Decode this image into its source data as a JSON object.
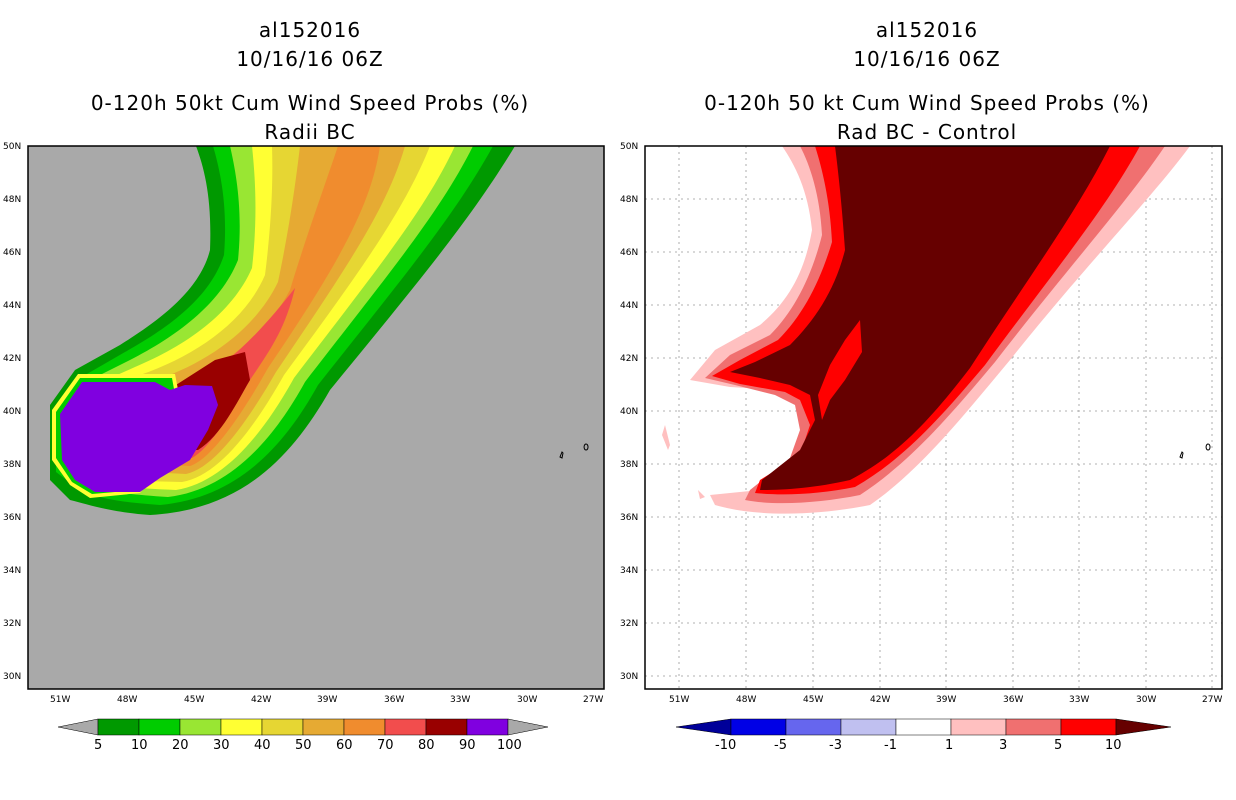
{
  "colors": {
    "land": "#a9a9a9",
    "left_levels": [
      "#009900",
      "#00cc00",
      "#99e633",
      "#ffff33",
      "#e6d633",
      "#e6aa33",
      "#f08c2e",
      "#f24d4d",
      "#990000",
      "#8000e0"
    ],
    "right_levels": [
      "#000099",
      "#0000e6",
      "#6666ee",
      "#c0c0f0",
      "#ffffff",
      "#ffc0c0",
      "#f07070",
      "#ff0000",
      "#660000"
    ]
  },
  "chart_data": [
    {
      "type": "heatmap",
      "storm_id": "al152016",
      "datetime": "10/16/16 06Z",
      "title": "0-120h 50kt Cum Wind Speed Probs (%)",
      "subtitle": "Radii BC",
      "x_ticks": [
        "51W",
        "48W",
        "45W",
        "42W",
        "39W",
        "36W",
        "33W",
        "30W",
        "27W"
      ],
      "y_ticks": [
        "50N",
        "48N",
        "46N",
        "44N",
        "42N",
        "40N",
        "38N",
        "36N",
        "34N",
        "32N",
        "30N"
      ],
      "colorbar_labels": [
        "5",
        "10",
        "20",
        "30",
        "40",
        "50",
        "60",
        "70",
        "80",
        "90",
        "100"
      ]
    },
    {
      "type": "heatmap",
      "storm_id": "al152016",
      "datetime": "10/16/16 06Z",
      "title": "0-120h 50 kt Cum Wind Speed Probs (%)",
      "subtitle": "Rad BC - Control",
      "x_ticks": [
        "51W",
        "48W",
        "45W",
        "42W",
        "39W",
        "36W",
        "33W",
        "30W",
        "27W"
      ],
      "y_ticks": [
        "50N",
        "48N",
        "46N",
        "44N",
        "42N",
        "40N",
        "38N",
        "36N",
        "34N",
        "32N",
        "30N"
      ],
      "colorbar_labels": [
        "-10",
        "-5",
        "-3",
        "-1",
        "1",
        "3",
        "5",
        "10"
      ]
    }
  ]
}
